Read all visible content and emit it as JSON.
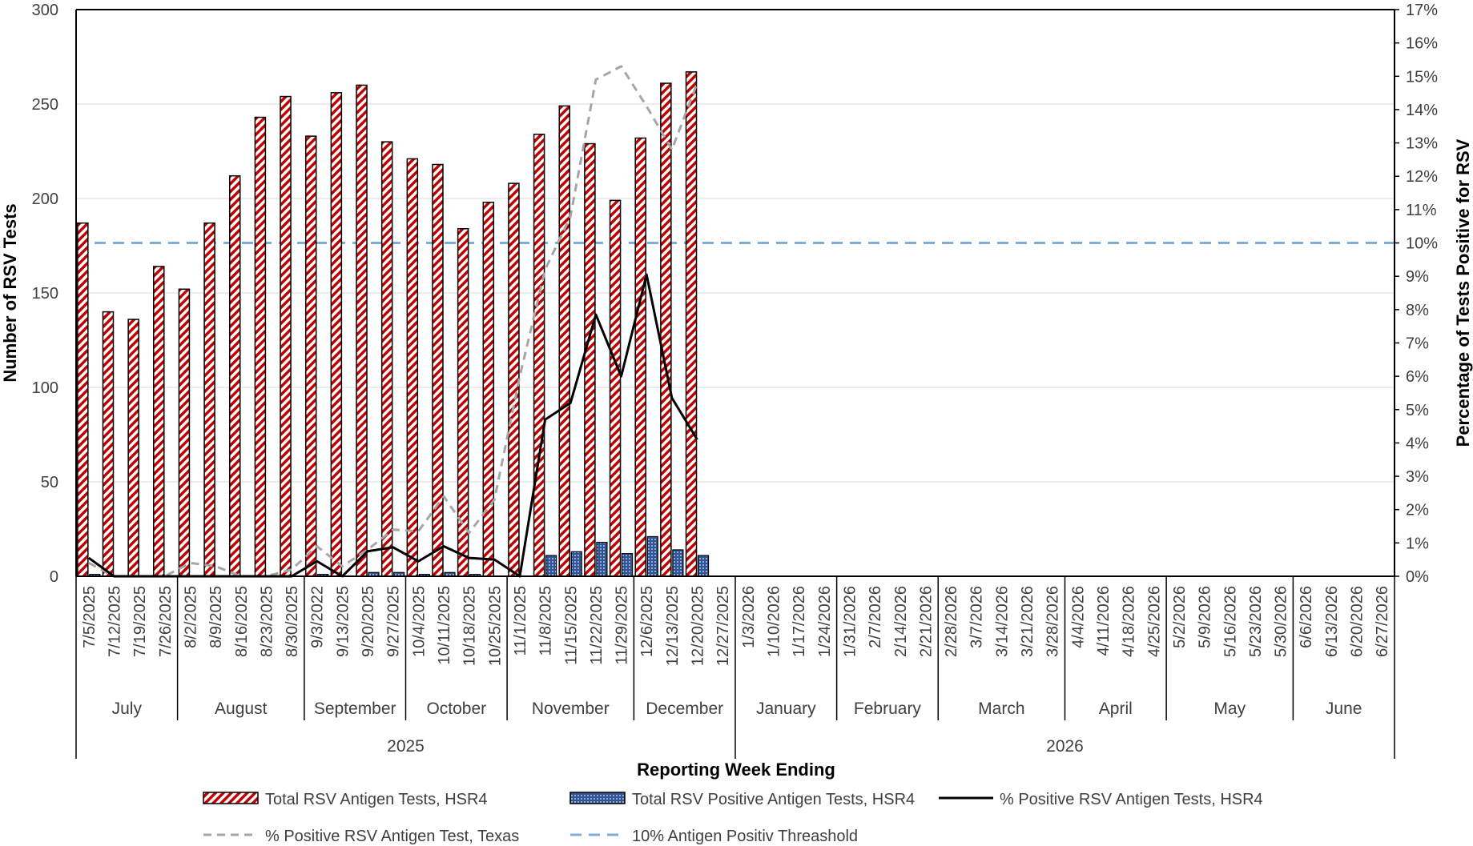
{
  "chart_data": {
    "type": "bar",
    "xlabel": "Reporting Week Ending",
    "ylabel": "Number of RSV Tests",
    "y2label": "Percentage of Tests Positive for RSV",
    "ylim": [
      0,
      300
    ],
    "y2lim": [
      0,
      17
    ],
    "yticks": [
      "0",
      "50",
      "100",
      "150",
      "200",
      "250",
      "300"
    ],
    "y2ticks": [
      "0%",
      "1%",
      "2%",
      "3%",
      "4%",
      "5%",
      "6%",
      "7%",
      "8%",
      "9%",
      "10%",
      "11%",
      "12%",
      "13%",
      "14%",
      "15%",
      "16%",
      "17%"
    ],
    "categories": [
      "7/5/2025",
      "7/12/2025",
      "7/19/2025",
      "7/26/2025",
      "8/2/2025",
      "8/9/2025",
      "8/16/2025",
      "8/23/2025",
      "8/30/2025",
      "9/3/2022",
      "9/13/2025",
      "9/20/2025",
      "9/27/2025",
      "10/4/2025",
      "10/11/2025",
      "10/18/2025",
      "10/25/2025",
      "11/1/2025",
      "11/8/2025",
      "11/15/2025",
      "11/22/2025",
      "11/29/2025",
      "12/6/2025",
      "12/13/2025",
      "12/20/2025",
      "12/27/2025",
      "1/3/2026",
      "1/10/2026",
      "1/17/2026",
      "1/24/2026",
      "1/31/2026",
      "2/7/2026",
      "2/14/2026",
      "2/21/2026",
      "2/28/2026",
      "3/7/2026",
      "3/14/2026",
      "3/21/2026",
      "3/28/2026",
      "4/4/2026",
      "4/11/2026",
      "4/18/2026",
      "4/25/2026",
      "5/2/2026",
      "5/9/2026",
      "5/16/2026",
      "5/23/2026",
      "5/30/2026",
      "6/6/2026",
      "6/13/2026",
      "6/20/2026",
      "6/27/2026"
    ],
    "months": [
      {
        "label": "July",
        "start": 0,
        "count": 4
      },
      {
        "label": "August",
        "start": 4,
        "count": 5
      },
      {
        "label": "September",
        "start": 9,
        "count": 4
      },
      {
        "label": "October",
        "start": 13,
        "count": 4
      },
      {
        "label": "November",
        "start": 17,
        "count": 5
      },
      {
        "label": "December",
        "start": 22,
        "count": 4
      },
      {
        "label": "January",
        "start": 26,
        "count": 4
      },
      {
        "label": "February",
        "start": 30,
        "count": 4
      },
      {
        "label": "March",
        "start": 34,
        "count": 5
      },
      {
        "label": "April",
        "start": 39,
        "count": 4
      },
      {
        "label": "May",
        "start": 43,
        "count": 5
      },
      {
        "label": "June",
        "start": 48,
        "count": 4
      }
    ],
    "years": [
      {
        "label": "2025",
        "start": 0,
        "count": 26
      },
      {
        "label": "2026",
        "start": 26,
        "count": 26
      }
    ],
    "series": [
      {
        "name": "Total RSV Antigen Tests, HSR4",
        "kind": "bar",
        "axis": "left",
        "color": "#c00000",
        "values": [
          187,
          140,
          136,
          164,
          152,
          187,
          212,
          243,
          254,
          233,
          256,
          260,
          230,
          221,
          218,
          184,
          198,
          208,
          234,
          249,
          229,
          199,
          232,
          261,
          267,
          null,
          null,
          null,
          null,
          null,
          null,
          null,
          null,
          null,
          null,
          null,
          null,
          null,
          null,
          null,
          null,
          null,
          null,
          null,
          null,
          null,
          null,
          null,
          null,
          null,
          null,
          null
        ]
      },
      {
        "name": "Total RSV Positive Antigen Tests, HSR4",
        "kind": "bar",
        "axis": "left",
        "color": "#4472c4",
        "values": [
          1,
          0,
          0,
          0,
          0,
          0,
          0,
          0,
          0,
          1,
          0,
          2,
          2,
          1,
          2,
          1,
          0,
          0,
          11,
          13,
          18,
          12,
          21,
          14,
          11,
          null,
          null,
          null,
          null,
          null,
          null,
          null,
          null,
          null,
          null,
          null,
          null,
          null,
          null,
          null,
          null,
          null,
          null,
          null,
          null,
          null,
          null,
          null,
          null,
          null,
          null,
          null
        ]
      },
      {
        "name": "% Positive RSV Antigen Tests, HSR4",
        "kind": "line",
        "axis": "right",
        "color": "#000000",
        "dash": "none",
        "values": [
          0.55,
          0,
          0,
          0,
          0,
          0,
          0,
          0,
          0,
          0.45,
          0,
          0.75,
          0.87,
          0.45,
          0.9,
          0.55,
          0.5,
          0,
          4.7,
          5.2,
          7.85,
          6.0,
          9.05,
          5.35,
          4.1,
          null,
          null,
          null,
          null,
          null,
          null,
          null,
          null,
          null,
          null,
          null,
          null,
          null,
          null,
          null,
          null,
          null,
          null,
          null,
          null,
          null,
          null,
          null,
          null,
          null,
          null,
          null
        ]
      },
      {
        "name": "% Positive RSV Antigen Test, Texas",
        "kind": "line",
        "axis": "right",
        "color": "#a6a6a6",
        "dash": "10,7",
        "values": [
          0.4,
          0,
          0,
          0,
          0.4,
          0.3,
          0,
          0,
          0.2,
          0.9,
          0.3,
          0.8,
          1.4,
          1.35,
          2.4,
          1.3,
          2.3,
          6.0,
          9.2,
          10.8,
          14.9,
          15.3,
          14.1,
          12.8,
          14.8,
          null,
          null,
          null,
          null,
          null,
          null,
          null,
          null,
          null,
          null,
          null,
          null,
          null,
          null,
          null,
          null,
          null,
          null,
          null,
          null,
          null,
          null,
          null,
          null,
          null,
          null,
          null
        ]
      },
      {
        "name": "10% Antigen Positiv Threashold",
        "kind": "hline",
        "axis": "right",
        "color": "#7fadd9",
        "dash": "14,9",
        "value": 10
      }
    ]
  }
}
